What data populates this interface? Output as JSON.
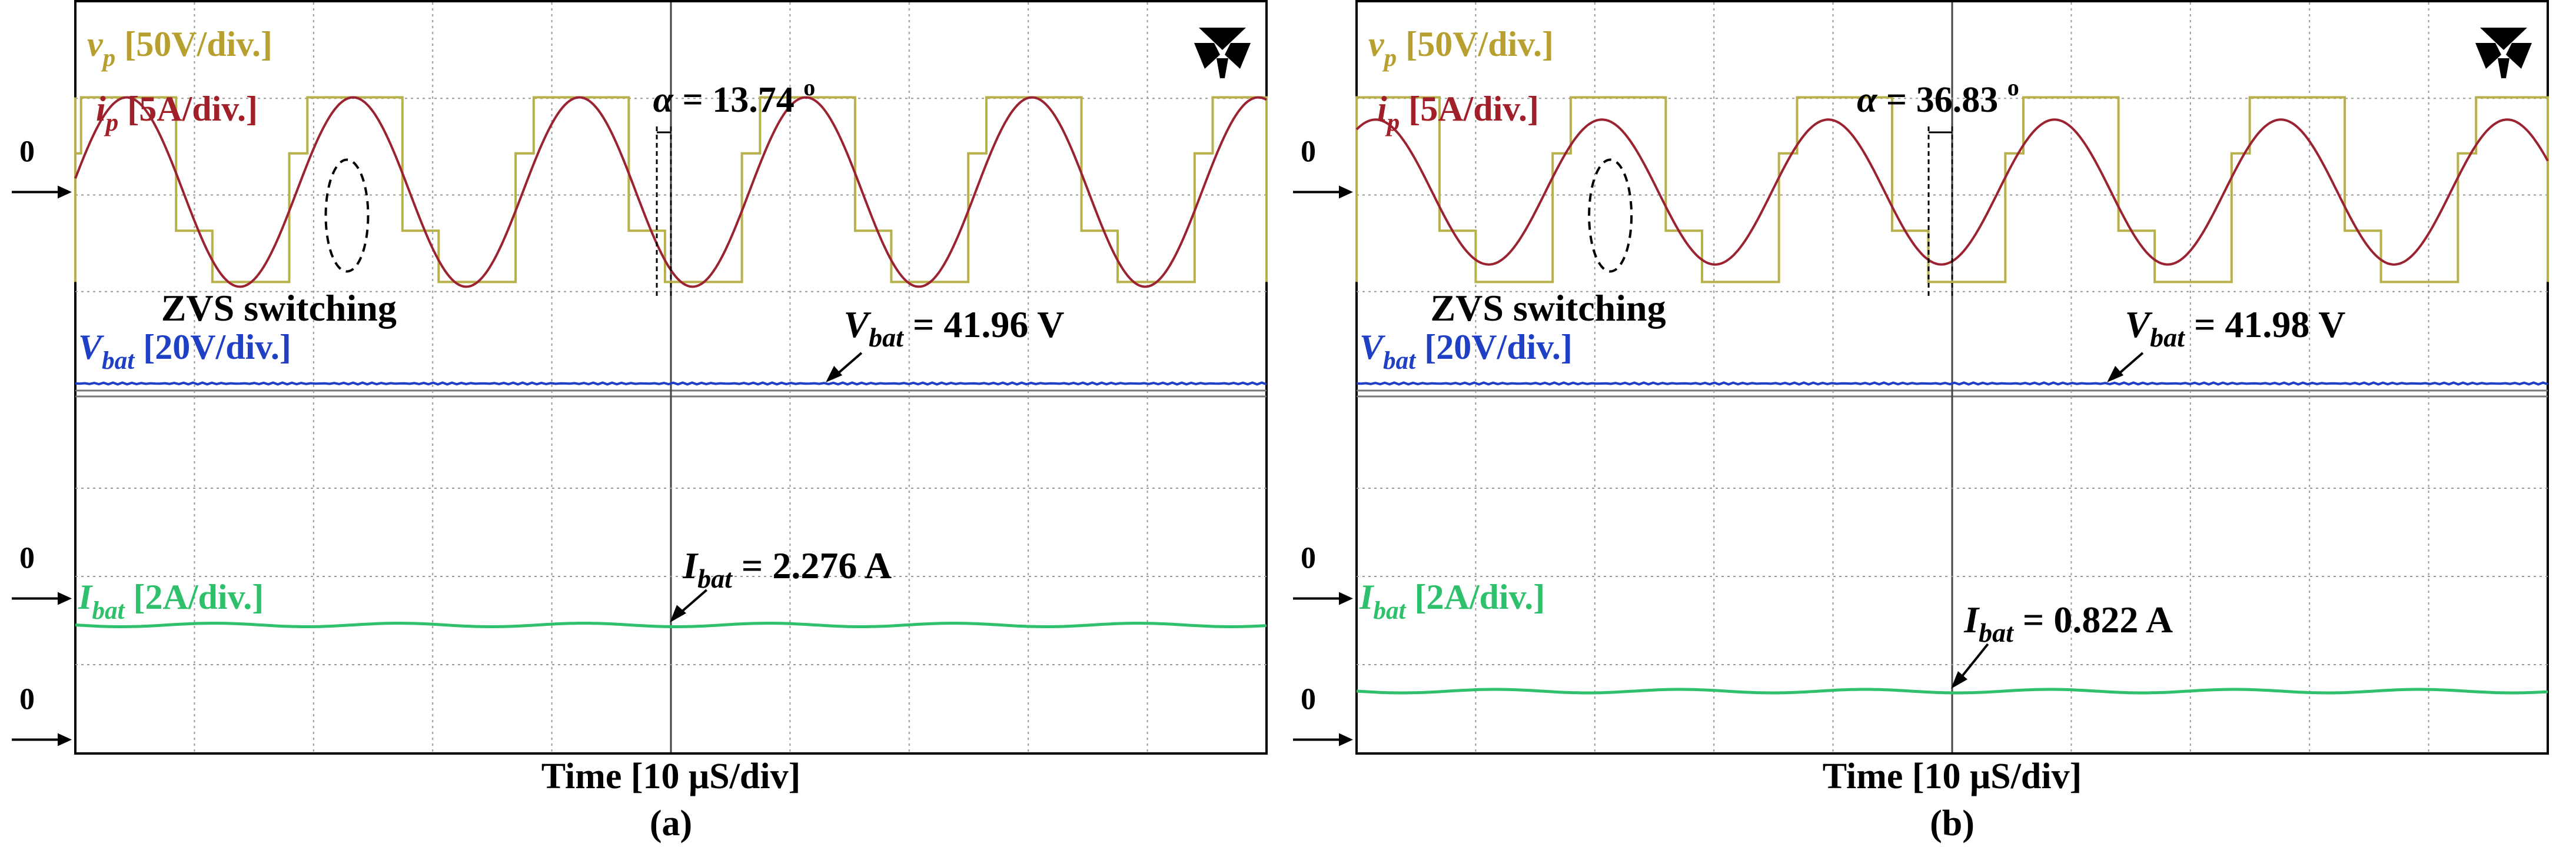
{
  "chart_data": [
    {
      "type": "line",
      "panel_caption": "(a)",
      "time_axis_label": "Time [10 μS/div]",
      "time_divisions": 10,
      "vertical_divisions": 8,
      "trace_labels": {
        "vp": {
          "symbol": "v",
          "sub": "p",
          "scale": " [50V/div.]"
        },
        "ip": {
          "symbol": "i",
          "sub": "p",
          "scale": " [5A/div.]"
        },
        "vbat": {
          "symbol": "V",
          "sub": "bat",
          "scale": " [20V/div.]"
        },
        "ibat": {
          "symbol": "I",
          "sub": "bat",
          "scale": " [2A/div.]"
        }
      },
      "ground_markers": [
        "0",
        "0",
        "0"
      ],
      "annotations": {
        "phase_shift": {
          "symbol": "α",
          "text": " = 13.74 ",
          "unit": "o",
          "value_deg": 13.74
        },
        "zvs": "ZVS switching",
        "vbat_reading": {
          "symbol": "V",
          "sub": "bat",
          "text": " = 41.96 V",
          "value": 41.96
        },
        "ibat_reading": {
          "symbol": "I",
          "sub": "bat",
          "text": " = 2.276 A",
          "value": 2.276
        }
      },
      "series": [
        {
          "name": "v_p",
          "color": "#b8b04a",
          "waveform": "quasi-square",
          "period_div": 1.9,
          "high_div": 1.0,
          "low_div": -0.95,
          "step_div": 0.4
        },
        {
          "name": "i_p",
          "color": "#9b2231",
          "waveform": "sine",
          "period_div": 1.9,
          "amplitude_div": 0.98,
          "phase_lag_deg": 13.74
        },
        {
          "name": "V_bat",
          "color": "#1f3fc4",
          "waveform": "dc",
          "level_V": 41.96
        },
        {
          "name": "I_bat",
          "color": "#2ec06a",
          "waveform": "dc",
          "level_A": 2.276
        }
      ]
    },
    {
      "type": "line",
      "panel_caption": "(b)",
      "time_axis_label": "Time [10 μS/div]",
      "time_divisions": 10,
      "vertical_divisions": 8,
      "trace_labels": {
        "vp": {
          "symbol": "v",
          "sub": "p",
          "scale": " [50V/div.]"
        },
        "ip": {
          "symbol": "i",
          "sub": "p",
          "scale": " [5A/div.]"
        },
        "vbat": {
          "symbol": "V",
          "sub": "bat",
          "scale": " [20V/div.]"
        },
        "ibat": {
          "symbol": "I",
          "sub": "bat",
          "scale": " [2A/div.]"
        }
      },
      "ground_markers": [
        "0",
        "0",
        "0"
      ],
      "annotations": {
        "phase_shift": {
          "symbol": "α",
          "text": " = 36.83 ",
          "unit": "o",
          "value_deg": 36.83
        },
        "zvs": "ZVS switching",
        "vbat_reading": {
          "symbol": "V",
          "sub": "bat",
          "text": " = 41.98 V",
          "value": 41.98
        },
        "ibat_reading": {
          "symbol": "I",
          "sub": "bat",
          "text": " = 0.822 A",
          "value": 0.822
        }
      },
      "series": [
        {
          "name": "v_p",
          "color": "#b8b04a",
          "waveform": "quasi-square",
          "period_div": 1.9,
          "high_div": 1.0,
          "low_div": -0.95,
          "step_div": 0.4
        },
        {
          "name": "i_p",
          "color": "#9b2231",
          "waveform": "sine",
          "period_div": 1.9,
          "amplitude_div": 0.75,
          "phase_lag_deg": 36.83
        },
        {
          "name": "V_bat",
          "color": "#1f3fc4",
          "waveform": "dc",
          "level_V": 41.98
        },
        {
          "name": "I_bat",
          "color": "#2ec06a",
          "waveform": "dc",
          "level_A": 0.822
        }
      ]
    }
  ],
  "colors": {
    "vp": "#b8a030",
    "ip": "#a01f28",
    "vbat": "#1f3fc4",
    "ibat": "#2ec06a",
    "text": "#000000",
    "grid": "#9a9a9a"
  }
}
